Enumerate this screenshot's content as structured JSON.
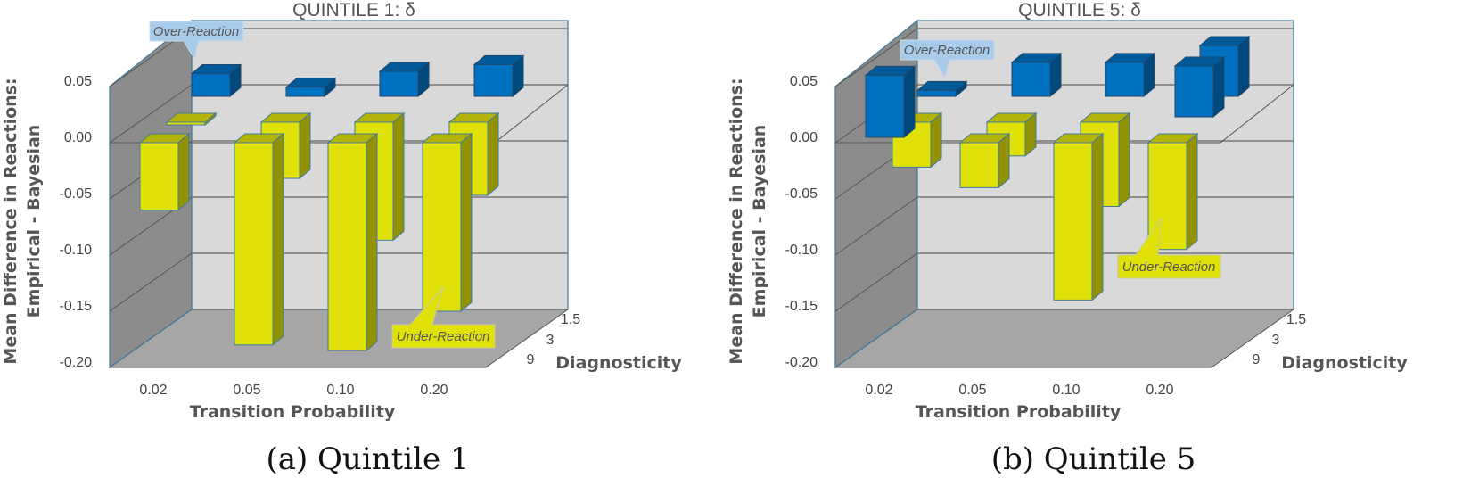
{
  "figure": {
    "panels": [
      {
        "caption": "(a) Quintile 1",
        "title": "QUINTILE 1: δ",
        "ylabel_line1": "Mean Difference in Reactions:",
        "ylabel_line2": "Empirical - Bayesian",
        "xlabel": "Transition Probability",
        "zlabel": "Diagnosticity",
        "yticks": [
          "0.05",
          "0.00",
          "-0.05",
          "-0.10",
          "-0.15",
          "-0.20"
        ],
        "xticks": [
          "0.02",
          "0.05",
          "0.10",
          "0.20"
        ],
        "zticks": [
          "1.5",
          "3",
          "9"
        ],
        "callouts": {
          "over": "Over-Reaction",
          "under": "Under-Reaction"
        }
      },
      {
        "caption": "(b) Quintile 5",
        "title": "QUINTILE 5: δ",
        "ylabel_line1": "Mean Difference in Reactions:",
        "ylabel_line2": "Empirical - Bayesian",
        "xlabel": "Transition Probability",
        "zlabel": "Diagnosticity",
        "yticks": [
          "0.05",
          "0.00",
          "-0.05",
          "-0.10",
          "-0.15",
          "-0.20"
        ],
        "xticks": [
          "0.02",
          "0.05",
          "0.10",
          "0.20"
        ],
        "zticks": [
          "1.5",
          "3",
          "9"
        ],
        "callouts": {
          "over": "Over-Reaction",
          "under": "Under-Reaction"
        }
      }
    ],
    "colors": {
      "positive": "#0070C0",
      "negative": "#E1E10A",
      "back_wall": "#D9D9D9",
      "side_wall": "#8C8C8C",
      "floor": "#A6A6A6",
      "over_callout": "#A9CBEA",
      "under_callout": "#E1E10A"
    }
  },
  "chart_data": [
    {
      "type": "bar",
      "subtype": "3d-bar",
      "title": "QUINTILE 1: δ",
      "xlabel": "Transition Probability",
      "ylabel": "Mean Difference in Reactions: Empirical - Bayesian",
      "zlabel": "Diagnosticity",
      "categories": [
        "0.02",
        "0.05",
        "0.10",
        "0.20"
      ],
      "ylim": [
        -0.2,
        0.05
      ],
      "grid": true,
      "series": [
        {
          "name": "9",
          "values": [
            -0.06,
            -0.18,
            -0.185,
            -0.15
          ]
        },
        {
          "name": "3",
          "values": [
            -0.002,
            -0.05,
            -0.105,
            -0.065
          ]
        },
        {
          "name": "1.5",
          "values": [
            0.025,
            0.013,
            0.027,
            0.033
          ]
        }
      ],
      "annotations": [
        "Over-Reaction",
        "Under-Reaction"
      ]
    },
    {
      "type": "bar",
      "subtype": "3d-bar",
      "title": "QUINTILE 5: δ",
      "xlabel": "Transition Probability",
      "ylabel": "Mean Difference in Reactions: Empirical - Bayesian",
      "zlabel": "Diagnosticity",
      "categories": [
        "0.02",
        "0.05",
        "0.10",
        "0.20"
      ],
      "ylim": [
        -0.2,
        0.05
      ],
      "grid": true,
      "series": [
        {
          "name": "9",
          "values": [
            0.06,
            -0.04,
            -0.14,
            -0.095
          ]
        },
        {
          "name": "3",
          "values": [
            -0.04,
            -0.03,
            -0.075,
            0.05
          ]
        },
        {
          "name": "1.5",
          "values": [
            0.01,
            0.035,
            0.035,
            0.05
          ]
        }
      ],
      "annotations": [
        "Over-Reaction",
        "Under-Reaction"
      ]
    }
  ]
}
